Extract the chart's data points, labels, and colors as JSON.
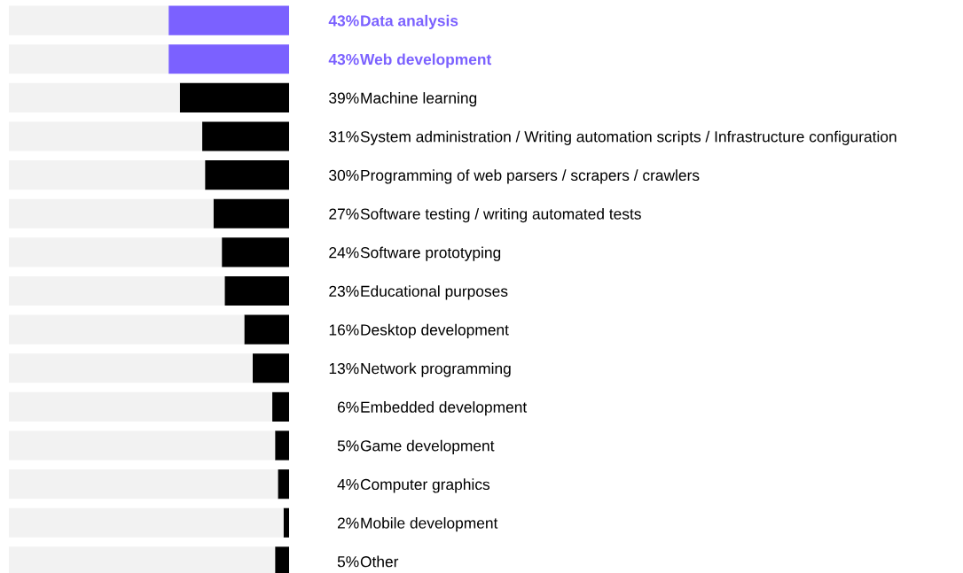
{
  "chart_data": {
    "type": "bar",
    "orientation": "horizontal",
    "stacked": true,
    "xlim": [
      100,
      0
    ],
    "tick_labels": "y",
    "grid": false,
    "categories": [
      "Data analysis",
      "Web development",
      "Machine learning",
      "System administration / Writing automation scripts / Infrastructure configuration",
      "Programming of web parsers / scrapers / crawlers",
      "Software testing / writing automated tests",
      "Software prototyping",
      "Educational purposes",
      "Desktop development",
      "Network programming",
      "Embedded development",
      "Game development",
      "Computer graphics",
      "Mobile development",
      "Other"
    ],
    "series": [
      {
        "color": "#000000",
        "colors": [
          "#7b61ff",
          "#7b61ff",
          "#000000",
          "#000000",
          "#000000",
          "#000000",
          "#000000",
          "#000000",
          "#000000",
          "#000000",
          "#000000",
          "#000000",
          "#000000",
          "#000000",
          "#000000"
        ],
        "values": [
          43,
          43,
          39,
          31,
          30,
          27,
          24,
          23,
          16,
          13,
          6,
          5,
          4,
          2,
          5
        ],
        "value_labels": [
          "43%",
          "43%",
          "39%",
          "31%",
          "30%",
          "27%",
          "24%",
          "23%",
          "16%",
          "13%",
          "6%",
          "5%",
          "4%",
          "2%",
          "5%"
        ]
      },
      {
        "color": "#f2f2f2",
        "values": [
          57,
          57,
          61,
          69,
          70,
          73,
          76,
          77,
          84,
          87,
          94,
          95,
          96,
          98,
          95
        ]
      }
    ]
  }
}
